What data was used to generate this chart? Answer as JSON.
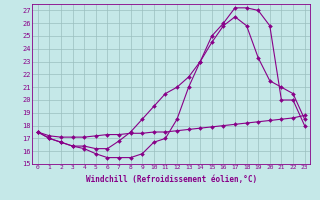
{
  "xlabel": "Windchill (Refroidissement éolien,°C)",
  "bg_color": "#c5e8e8",
  "line_color": "#880088",
  "xlim": [
    -0.5,
    23.5
  ],
  "ylim": [
    15,
    27.5
  ],
  "xticks": [
    0,
    1,
    2,
    3,
    4,
    5,
    6,
    7,
    8,
    9,
    10,
    11,
    12,
    13,
    14,
    15,
    16,
    17,
    18,
    19,
    20,
    21,
    22,
    23
  ],
  "yticks": [
    15,
    16,
    17,
    18,
    19,
    20,
    21,
    22,
    23,
    24,
    25,
    26,
    27
  ],
  "line1_x": [
    0,
    1,
    2,
    3,
    4,
    5,
    6,
    7,
    8,
    9,
    10,
    11,
    12,
    13,
    14,
    15,
    16,
    17,
    18,
    19,
    20,
    21,
    22,
    23
  ],
  "line1_y": [
    17.5,
    17.0,
    16.7,
    16.4,
    16.2,
    15.8,
    15.5,
    15.5,
    15.5,
    15.8,
    16.7,
    17.0,
    18.5,
    21.0,
    23.0,
    25.0,
    26.0,
    27.2,
    27.2,
    27.0,
    25.8,
    20.0,
    20.0,
    18.0
  ],
  "line2_x": [
    0,
    1,
    2,
    3,
    4,
    5,
    6,
    7,
    8,
    9,
    10,
    11,
    12,
    13,
    14,
    15,
    16,
    17,
    18,
    19,
    20,
    21,
    22,
    23
  ],
  "line2_y": [
    17.5,
    17.0,
    16.7,
    16.4,
    16.4,
    16.2,
    16.2,
    16.8,
    17.5,
    18.5,
    19.5,
    20.5,
    21.0,
    21.8,
    23.0,
    24.5,
    25.8,
    26.5,
    25.8,
    23.3,
    21.5,
    21.0,
    20.5,
    18.5
  ],
  "line3_x": [
    0,
    1,
    2,
    3,
    4,
    5,
    6,
    7,
    8,
    9,
    10,
    11,
    12,
    13,
    14,
    15,
    16,
    17,
    18,
    19,
    20,
    21,
    22,
    23
  ],
  "line3_y": [
    17.5,
    17.2,
    17.1,
    17.1,
    17.1,
    17.2,
    17.3,
    17.3,
    17.4,
    17.4,
    17.5,
    17.5,
    17.6,
    17.7,
    17.8,
    17.9,
    18.0,
    18.1,
    18.2,
    18.3,
    18.4,
    18.5,
    18.6,
    18.8
  ]
}
